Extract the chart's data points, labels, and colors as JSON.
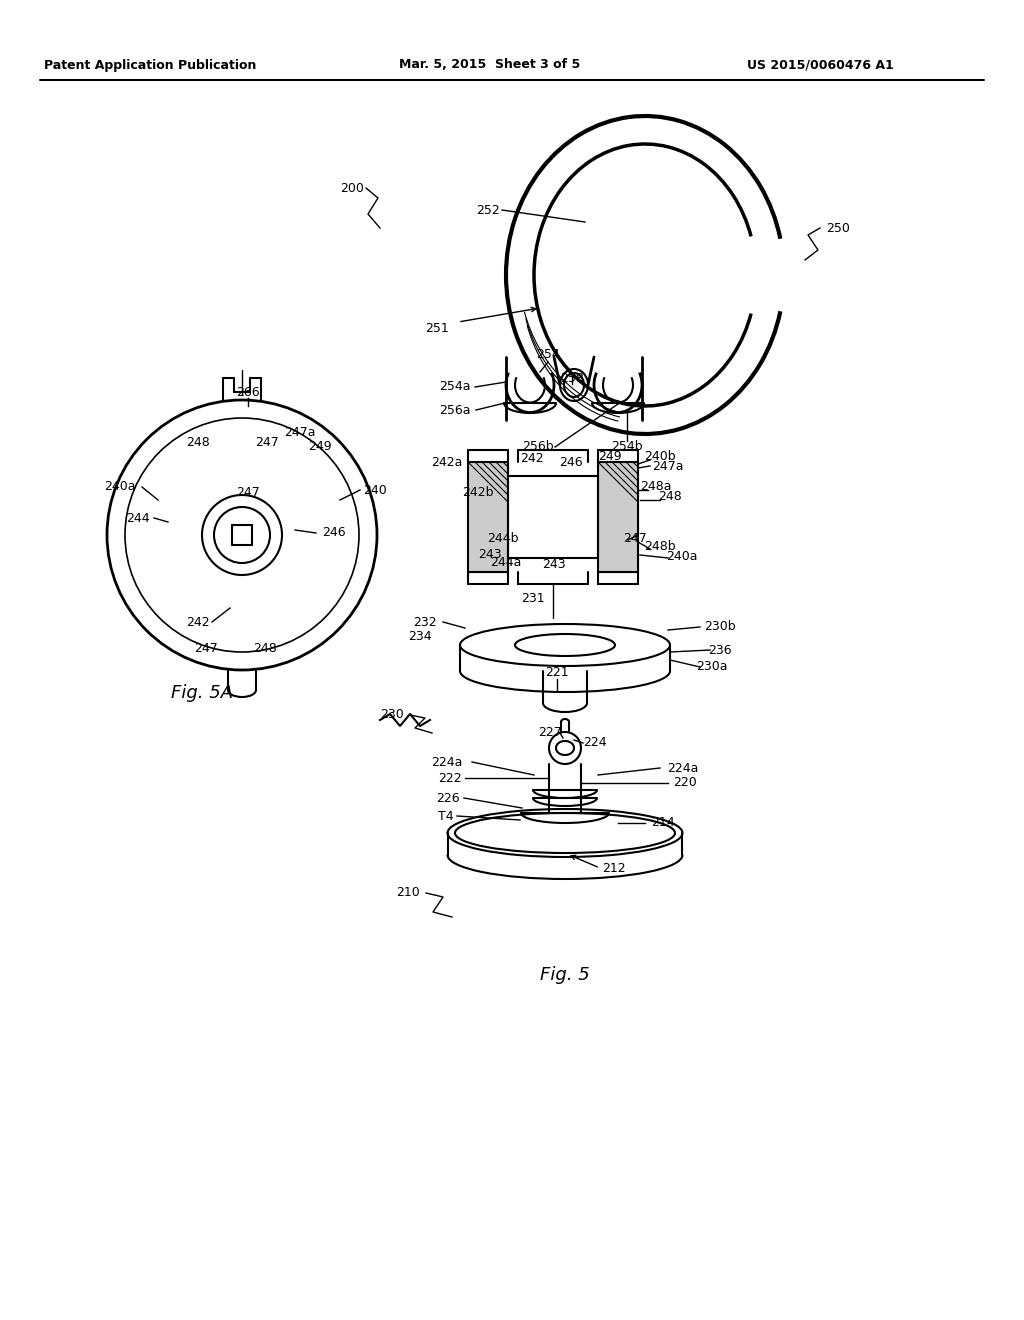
{
  "bg_color": "#ffffff",
  "line_color": "#000000",
  "header_left": "Patent Application Publication",
  "header_mid": "Mar. 5, 2015  Sheet 3 of 5",
  "header_right": "US 2015/0060476 A1",
  "fig5a_label": "Fig. 5A",
  "fig5_label": "Fig. 5"
}
